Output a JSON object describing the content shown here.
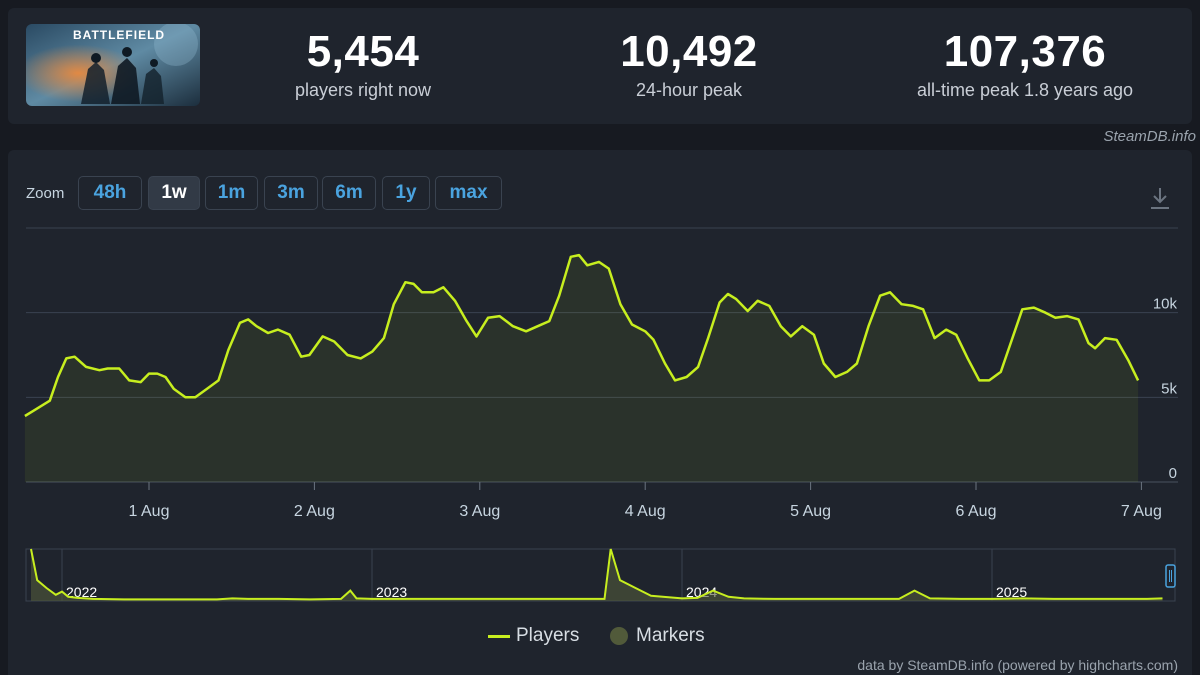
{
  "stats": [
    {
      "value": "5,454",
      "label": "players right now"
    },
    {
      "value": "10,492",
      "label": "24-hour peak"
    },
    {
      "value": "107,376",
      "label": "all-time peak 1.8 years ago"
    }
  ],
  "thumbnail_text": "BATTLEFIELD",
  "credit_top": "SteamDB.info",
  "zoom": {
    "label": "Zoom",
    "buttons": [
      "48h",
      "1w",
      "1m",
      "3m",
      "6m",
      "1y",
      "max"
    ],
    "active": "1w"
  },
  "legend": {
    "players": "Players",
    "markers": "Markers"
  },
  "credit_bottom": "data by SteamDB.info (powered by highcharts.com)",
  "colors": {
    "series": "#c7ee1f",
    "background": "#1f242d",
    "accent": "#4aa3df",
    "marker": "#515a3a"
  },
  "chart_data": [
    {
      "type": "line",
      "grid": true,
      "legend_position": "bottom-center",
      "x_ticks": [
        "1 Aug",
        "2 Aug",
        "3 Aug",
        "4 Aug",
        "5 Aug",
        "6 Aug",
        "7 Aug"
      ],
      "y_ticks": [
        "0",
        "5k",
        "10k"
      ],
      "ylim": [
        0,
        15000
      ],
      "series": [
        {
          "name": "Players",
          "x_unit": "days since 31 Jul 00:00",
          "points": [
            [
              -0.75,
              3900
            ],
            [
              -0.7,
              4200
            ],
            [
              -0.6,
              4800
            ],
            [
              -0.55,
              6200
            ],
            [
              -0.5,
              7300
            ],
            [
              -0.45,
              7400
            ],
            [
              -0.38,
              6800
            ],
            [
              -0.3,
              6600
            ],
            [
              -0.25,
              6700
            ],
            [
              -0.18,
              6700
            ],
            [
              -0.12,
              6000
            ],
            [
              -0.05,
              5900
            ],
            [
              0.0,
              6400
            ],
            [
              0.05,
              6400
            ],
            [
              0.1,
              6200
            ],
            [
              0.15,
              5500
            ],
            [
              0.22,
              5000
            ],
            [
              0.28,
              5000
            ],
            [
              0.35,
              5500
            ],
            [
              0.42,
              6000
            ],
            [
              0.48,
              7800
            ],
            [
              0.55,
              9400
            ],
            [
              0.6,
              9600
            ],
            [
              0.65,
              9200
            ],
            [
              0.72,
              8800
            ],
            [
              0.78,
              9000
            ],
            [
              0.85,
              8700
            ],
            [
              0.92,
              7400
            ],
            [
              0.97,
              7500
            ],
            [
              1.05,
              8600
            ],
            [
              1.12,
              8300
            ],
            [
              1.2,
              7500
            ],
            [
              1.28,
              7300
            ],
            [
              1.35,
              7700
            ],
            [
              1.42,
              8500
            ],
            [
              1.48,
              10500
            ],
            [
              1.55,
              11800
            ],
            [
              1.6,
              11700
            ],
            [
              1.65,
              11200
            ],
            [
              1.72,
              11200
            ],
            [
              1.78,
              11500
            ],
            [
              1.85,
              10700
            ],
            [
              1.92,
              9500
            ],
            [
              1.98,
              8600
            ],
            [
              2.05,
              9700
            ],
            [
              2.12,
              9800
            ],
            [
              2.2,
              9200
            ],
            [
              2.28,
              8900
            ],
            [
              2.35,
              9200
            ],
            [
              2.42,
              9500
            ],
            [
              2.48,
              11000
            ],
            [
              2.55,
              13300
            ],
            [
              2.6,
              13400
            ],
            [
              2.65,
              12800
            ],
            [
              2.72,
              13000
            ],
            [
              2.78,
              12600
            ],
            [
              2.85,
              10500
            ],
            [
              2.92,
              9300
            ],
            [
              3.0,
              8900
            ],
            [
              3.05,
              8400
            ],
            [
              3.12,
              7000
            ],
            [
              3.18,
              6000
            ],
            [
              3.25,
              6200
            ],
            [
              3.32,
              6800
            ],
            [
              3.38,
              8500
            ],
            [
              3.45,
              10600
            ],
            [
              3.5,
              11100
            ],
            [
              3.55,
              10800
            ],
            [
              3.62,
              10100
            ],
            [
              3.68,
              10700
            ],
            [
              3.75,
              10400
            ],
            [
              3.82,
              9200
            ],
            [
              3.88,
              8600
            ],
            [
              3.95,
              9200
            ],
            [
              4.02,
              8700
            ],
            [
              4.08,
              7000
            ],
            [
              4.15,
              6200
            ],
            [
              4.22,
              6500
            ],
            [
              4.28,
              7000
            ],
            [
              4.35,
              9200
            ],
            [
              4.42,
              11000
            ],
            [
              4.48,
              11200
            ],
            [
              4.55,
              10500
            ],
            [
              4.62,
              10400
            ],
            [
              4.68,
              10200
            ],
            [
              4.75,
              8500
            ],
            [
              4.82,
              9000
            ],
            [
              4.88,
              8700
            ],
            [
              4.95,
              7300
            ],
            [
              5.02,
              6000
            ],
            [
              5.08,
              6000
            ],
            [
              5.15,
              6500
            ],
            [
              5.22,
              8500
            ],
            [
              5.28,
              10200
            ],
            [
              5.35,
              10300
            ],
            [
              5.42,
              10000
            ],
            [
              5.48,
              9700
            ],
            [
              5.55,
              9800
            ],
            [
              5.62,
              9600
            ],
            [
              5.68,
              8200
            ],
            [
              5.72,
              7900
            ],
            [
              5.78,
              8500
            ],
            [
              5.85,
              8400
            ],
            [
              5.92,
              7200
            ],
            [
              5.98,
              6000
            ]
          ]
        }
      ]
    },
    {
      "type": "area",
      "role": "navigator",
      "x_ticks": [
        "2022",
        "2023",
        "2024",
        "2025"
      ],
      "series": [
        {
          "name": "Players",
          "x_unit": "years since Jan 2022",
          "points": [
            [
              -0.1,
              100
            ],
            [
              -0.08,
              40
            ],
            [
              -0.05,
              25
            ],
            [
              -0.02,
              12
            ],
            [
              0.0,
              18
            ],
            [
              0.02,
              8
            ],
            [
              0.05,
              6
            ],
            [
              0.1,
              4
            ],
            [
              0.2,
              3
            ],
            [
              0.3,
              3
            ],
            [
              0.4,
              3
            ],
            [
              0.5,
              3
            ],
            [
              0.55,
              5
            ],
            [
              0.6,
              4
            ],
            [
              0.7,
              4
            ],
            [
              0.8,
              3
            ],
            [
              0.9,
              4
            ],
            [
              0.93,
              20
            ],
            [
              0.95,
              5
            ],
            [
              1.0,
              4
            ],
            [
              1.1,
              4
            ],
            [
              1.2,
              4
            ],
            [
              1.3,
              4
            ],
            [
              1.4,
              4
            ],
            [
              1.5,
              4
            ],
            [
              1.6,
              4
            ],
            [
              1.7,
              4
            ],
            [
              1.75,
              4
            ],
            [
              1.77,
              100
            ],
            [
              1.8,
              40
            ],
            [
              1.85,
              25
            ],
            [
              1.9,
              10
            ],
            [
              2.0,
              5
            ],
            [
              2.05,
              6
            ],
            [
              2.1,
              20
            ],
            [
              2.15,
              8
            ],
            [
              2.2,
              5
            ],
            [
              2.3,
              4
            ],
            [
              2.4,
              4
            ],
            [
              2.5,
              4
            ],
            [
              2.6,
              4
            ],
            [
              2.7,
              4
            ],
            [
              2.75,
              20
            ],
            [
              2.8,
              5
            ],
            [
              2.9,
              4
            ],
            [
              3.0,
              4
            ],
            [
              3.1,
              5
            ],
            [
              3.2,
              4
            ],
            [
              3.3,
              4
            ],
            [
              3.4,
              4
            ],
            [
              3.5,
              4
            ],
            [
              3.55,
              5
            ]
          ]
        }
      ]
    }
  ]
}
